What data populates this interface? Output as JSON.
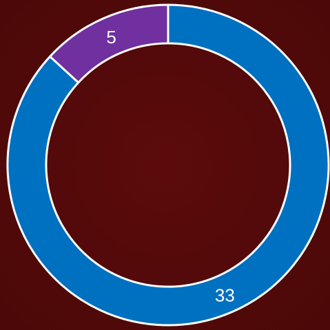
{
  "chart_data": {
    "type": "donut",
    "values": [
      33,
      5
    ],
    "colors": [
      "#0070c0",
      "#7030a0"
    ]
  }
}
